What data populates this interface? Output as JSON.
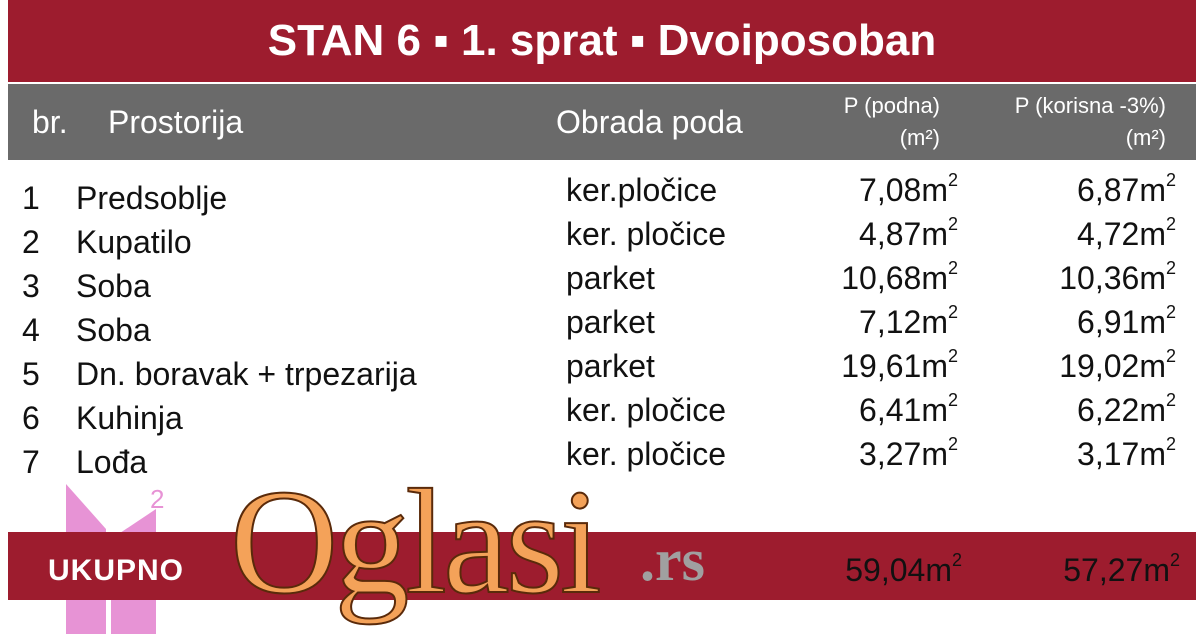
{
  "title": "STAN 6 ▪ 1. sprat ▪ Dvoiposoban",
  "header": {
    "br": "br.",
    "room": "Prostorija",
    "floor": "Obrada poda",
    "p_podna": "P (podna)",
    "p_podna_unit": "(m²)",
    "p_korisna": "P (korisna -3%)",
    "p_korisna_unit": "(m²)"
  },
  "rows": [
    {
      "num": "1",
      "room": "Predsoblje",
      "floor": "ker.pločice",
      "podna": "7,08m",
      "korisna": "6,87m"
    },
    {
      "num": "2",
      "room": "Kupatilo",
      "floor": "ker. pločice",
      "podna": "4,87m",
      "korisna": "4,72m"
    },
    {
      "num": "3",
      "room": "Soba",
      "floor": "parket",
      "podna": "10,68m",
      "korisna": "10,36m"
    },
    {
      "num": "4",
      "room": "Soba",
      "floor": "parket",
      "podna": "7,12m",
      "korisna": "6,91m"
    },
    {
      "num": "5",
      "room": "Dn. boravak + trpezarija",
      "floor": "parket",
      "podna": "19,61m",
      "korisna": "19,02m"
    },
    {
      "num": "6",
      "room": "Kuhinja",
      "floor": "ker. pločice",
      "podna": "6,41m",
      "korisna": "6,22m"
    },
    {
      "num": "7",
      "room": "Lođa",
      "floor": "ker. pločice",
      "podna": "3,27m",
      "korisna": "3,17m"
    }
  ],
  "unit_sup": "2",
  "total": {
    "label": "UKUPNO",
    "podna": "59,04m",
    "korisna": "57,27m"
  },
  "watermark": {
    "text": "Oglasi",
    "suffix": ".rs"
  },
  "logo": {
    "text": "M2"
  },
  "colors": {
    "title_bg": "#9d1c2e",
    "header_bg": "#6a6a6a",
    "watermark": "#f4a259",
    "logo": "#e070c8"
  }
}
